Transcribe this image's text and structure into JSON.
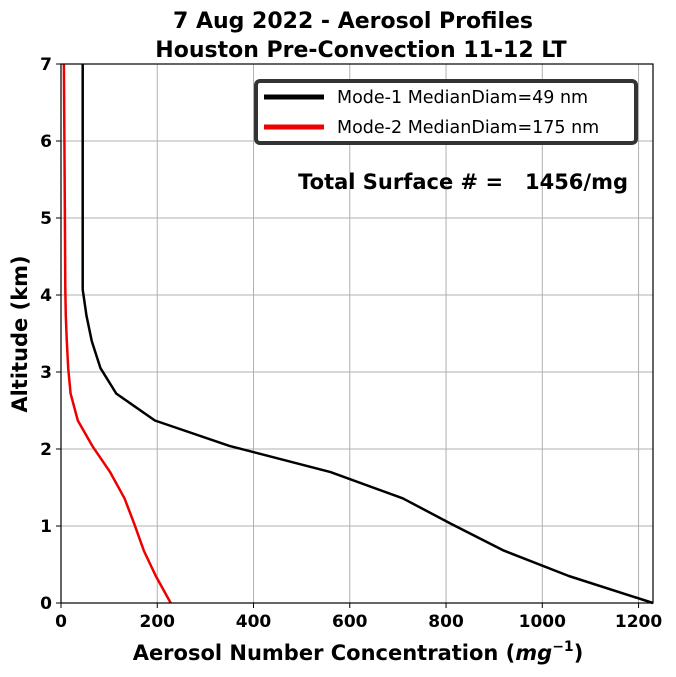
{
  "chart_data": {
    "type": "line",
    "title": [
      "7 Aug 2022 - Aerosol Profiles",
      "Houston Pre-Convection 11-12 LT"
    ],
    "xlabel": "Aerosol Number Concentration (mg⁻¹)",
    "xlabel_main": "Aerosol Number Concentration (",
    "xlabel_unit": "mg",
    "xlabel_exp": "−1",
    "xlabel_close": ")",
    "ylabel": "Altitude (km)",
    "xlim": [
      0,
      1230
    ],
    "ylim": [
      0,
      7
    ],
    "xticks": [
      0,
      200,
      400,
      600,
      800,
      1000,
      1200
    ],
    "yticks": [
      0,
      1,
      2,
      3,
      4,
      5,
      6,
      7
    ],
    "grid": true,
    "legend_position": "top-right",
    "annotation": "Total Surface # =   1456/mg",
    "series": [
      {
        "name": "Mode-1 MedianDiam=49 nm",
        "color": "#000000",
        "points": [
          [
            1230,
            0.0
          ],
          [
            1055,
            0.35
          ],
          [
            920,
            0.68
          ],
          [
            810,
            1.03
          ],
          [
            710,
            1.36
          ],
          [
            560,
            1.7
          ],
          [
            350,
            2.04
          ],
          [
            195,
            2.37
          ],
          [
            115,
            2.72
          ],
          [
            82,
            3.05
          ],
          [
            64,
            3.4
          ],
          [
            53,
            3.73
          ],
          [
            45,
            4.07
          ],
          [
            45,
            5.0
          ],
          [
            45,
            6.0
          ],
          [
            45,
            7.0
          ]
        ]
      },
      {
        "name": "Mode-2 MedianDiam=175 nm",
        "color": "#ee0000",
        "points": [
          [
            228,
            0.0
          ],
          [
            197,
            0.35
          ],
          [
            172,
            0.68
          ],
          [
            152,
            1.03
          ],
          [
            132,
            1.36
          ],
          [
            102,
            1.7
          ],
          [
            65,
            2.04
          ],
          [
            35,
            2.37
          ],
          [
            20,
            2.72
          ],
          [
            15,
            3.05
          ],
          [
            12,
            3.4
          ],
          [
            10,
            3.73
          ],
          [
            9,
            4.07
          ],
          [
            8,
            5.0
          ],
          [
            7,
            6.0
          ],
          [
            6,
            7.0
          ]
        ]
      }
    ]
  }
}
